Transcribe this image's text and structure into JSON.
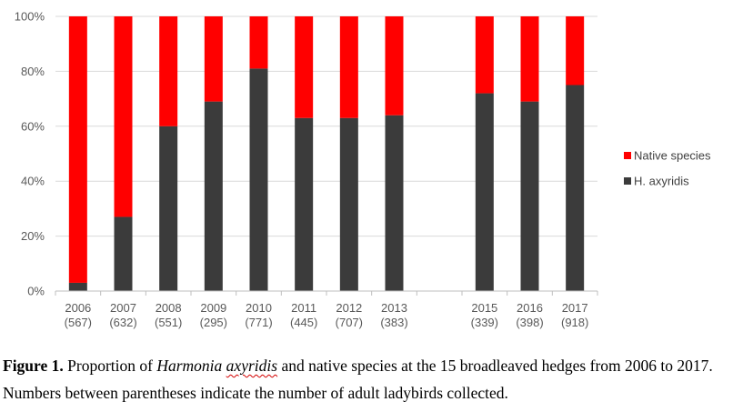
{
  "chart_data": {
    "type": "bar",
    "stacked": true,
    "normalized": true,
    "categories": [
      "2006",
      "2007",
      "2008",
      "2009",
      "2010",
      "2011",
      "2012",
      "2013",
      "",
      "2015",
      "2016",
      "2017"
    ],
    "category_counts": [
      "(567)",
      "(632)",
      "(551)",
      "(295)",
      "(771)",
      "(445)",
      "(707)",
      "(383)",
      "",
      "(339)",
      "(398)",
      "(918)"
    ],
    "series": [
      {
        "name": "H. axyridis",
        "color": "#3b3b3b",
        "values": [
          3,
          27,
          60,
          69,
          81,
          63,
          63,
          64,
          null,
          72,
          69,
          75
        ]
      },
      {
        "name": "Native species",
        "color": "#ff0000",
        "values": [
          97,
          73,
          40,
          31,
          19,
          37,
          37,
          36,
          null,
          28,
          31,
          25
        ]
      }
    ],
    "ylim": [
      0,
      100
    ],
    "yticks": [
      "0%",
      "20%",
      "40%",
      "60%",
      "80%",
      "100%"
    ],
    "grid": true,
    "legend_position": "right",
    "legend_order": [
      "Native species",
      "H. axyridis"
    ]
  },
  "caption": {
    "label": "Figure 1.",
    "text_before": " Proportion of ",
    "species_genus": "Harmonia",
    "species_space": " ",
    "species_epithet": "axyridis",
    "text_after": " and native species at the 15 broadleaved hedges from 2006 to 2017. Numbers between parentheses indicate the number of adult ladybirds collected."
  }
}
